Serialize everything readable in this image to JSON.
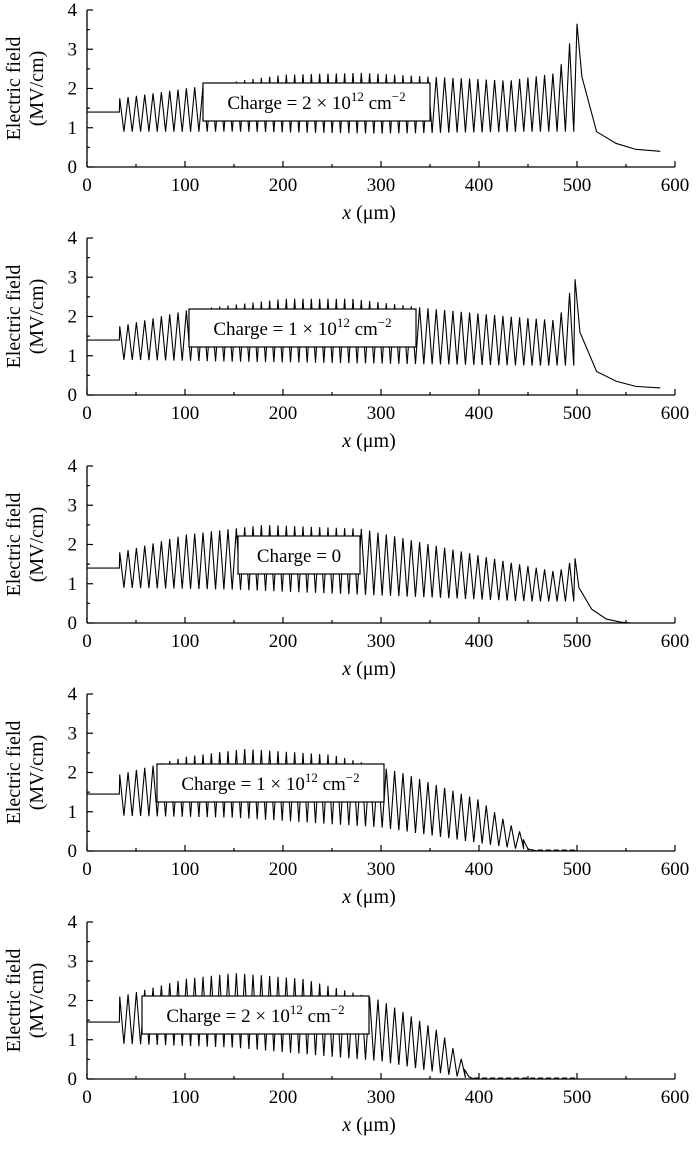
{
  "chart_data": [
    {
      "type": "line",
      "annotation": {
        "prefix": "Charge = 2 × 10",
        "exp": "12",
        "unit": " cm",
        "unit_exp": "−2"
      },
      "ylabel_line1": "Electric field",
      "ylabel_line2": "(MV/cm)",
      "xlabel_var": "x",
      "xlabel_unit": " (μm)",
      "xlim": [
        0,
        600
      ],
      "ylim": [
        0,
        4
      ],
      "xticks": [
        "0",
        "100",
        "200",
        "300",
        "400",
        "500",
        "600"
      ],
      "yticks": [
        "0",
        "1",
        "2",
        "3",
        "4"
      ],
      "series": [
        {
          "baseline": 1.4,
          "spike_start": 33,
          "spike_end": 500,
          "spike_pitch": 8.5,
          "peak_envelope": [
            [
              33,
              1.75
            ],
            [
              100,
              2.0
            ],
            [
              200,
              2.35
            ],
            [
              280,
              2.4
            ],
            [
              350,
              2.3
            ],
            [
              430,
              2.2
            ],
            [
              480,
              2.4
            ],
            [
              500,
              3.65
            ]
          ],
          "trough_envelope": [
            [
              33,
              0.9
            ],
            [
              150,
              0.9
            ],
            [
              300,
              0.85
            ],
            [
              450,
              0.9
            ],
            [
              500,
              0.9
            ]
          ],
          "tail": [
            [
              500,
              3.65
            ],
            [
              505,
              2.3
            ],
            [
              520,
              0.9
            ],
            [
              540,
              0.6
            ],
            [
              560,
              0.45
            ],
            [
              585,
              0.4
            ]
          ],
          "dashed_tail": false
        }
      ]
    },
    {
      "type": "line",
      "annotation": {
        "prefix": "Charge = 1 × 10",
        "exp": "12",
        "unit": " cm",
        "unit_exp": "−2"
      },
      "ylabel_line1": "Electric field",
      "ylabel_line2": "(MV/cm)",
      "xlabel_var": "x",
      "xlabel_unit": " (μm)",
      "xlim": [
        0,
        600
      ],
      "ylim": [
        0,
        4
      ],
      "xticks": [
        "0",
        "100",
        "200",
        "300",
        "400",
        "500",
        "600"
      ],
      "yticks": [
        "0",
        "1",
        "2",
        "3",
        "4"
      ],
      "series": [
        {
          "baseline": 1.4,
          "spike_start": 33,
          "spike_end": 498,
          "spike_pitch": 8.5,
          "peak_envelope": [
            [
              33,
              1.75
            ],
            [
              100,
              2.15
            ],
            [
              200,
              2.45
            ],
            [
              270,
              2.45
            ],
            [
              350,
              2.2
            ],
            [
              430,
              2.0
            ],
            [
              480,
              1.9
            ],
            [
              498,
              2.95
            ]
          ],
          "trough_envelope": [
            [
              33,
              0.9
            ],
            [
              150,
              0.85
            ],
            [
              300,
              0.8
            ],
            [
              450,
              0.75
            ],
            [
              498,
              0.75
            ]
          ],
          "tail": [
            [
              498,
              2.95
            ],
            [
              503,
              1.6
            ],
            [
              520,
              0.6
            ],
            [
              540,
              0.35
            ],
            [
              560,
              0.22
            ],
            [
              585,
              0.18
            ]
          ],
          "dashed_tail": false
        }
      ]
    },
    {
      "type": "line",
      "annotation": {
        "prefix": "Charge = 0",
        "exp": "",
        "unit": "",
        "unit_exp": ""
      },
      "ylabel_line1": "Electric field",
      "ylabel_line2": "(MV/cm)",
      "xlabel_var": "x",
      "xlabel_unit": " (μm)",
      "xlim": [
        0,
        600
      ],
      "ylim": [
        0,
        4
      ],
      "xticks": [
        "0",
        "100",
        "200",
        "300",
        "400",
        "500",
        "600"
      ],
      "yticks": [
        "0",
        "1",
        "2",
        "3",
        "4"
      ],
      "series": [
        {
          "baseline": 1.4,
          "spike_start": 33,
          "spike_end": 498,
          "spike_pitch": 8.5,
          "peak_envelope": [
            [
              33,
              1.8
            ],
            [
              100,
              2.25
            ],
            [
              180,
              2.5
            ],
            [
              280,
              2.4
            ],
            [
              350,
              2.0
            ],
            [
              430,
              1.55
            ],
            [
              480,
              1.3
            ],
            [
              498,
              1.65
            ]
          ],
          "trough_envelope": [
            [
              33,
              0.9
            ],
            [
              150,
              0.85
            ],
            [
              300,
              0.7
            ],
            [
              450,
              0.55
            ],
            [
              498,
              0.55
            ]
          ],
          "tail": [
            [
              498,
              1.65
            ],
            [
              502,
              0.9
            ],
            [
              515,
              0.35
            ],
            [
              530,
              0.1
            ],
            [
              545,
              0.02
            ],
            [
              555,
              0.0
            ]
          ],
          "dashed_tail": false
        }
      ]
    },
    {
      "type": "line",
      "annotation": {
        "prefix": "Charge = 1 × 10",
        "exp": "12",
        "unit": " cm",
        "unit_exp": "−2"
      },
      "ylabel_line1": "Electric field",
      "ylabel_line2": "(MV/cm)",
      "xlabel_var": "x",
      "xlabel_unit": " (μm)",
      "xlim": [
        0,
        600
      ],
      "ylim": [
        0,
        4
      ],
      "xticks": [
        "0",
        "100",
        "200",
        "300",
        "400",
        "500",
        "600"
      ],
      "yticks": [
        "0",
        "1",
        "2",
        "3",
        "4"
      ],
      "series": [
        {
          "baseline": 1.45,
          "spike_start": 33,
          "spike_end": 445,
          "spike_pitch": 8.5,
          "peak_envelope": [
            [
              33,
              1.95
            ],
            [
              100,
              2.4
            ],
            [
              160,
              2.6
            ],
            [
              250,
              2.45
            ],
            [
              320,
              2.0
            ],
            [
              400,
              1.3
            ],
            [
              440,
              0.5
            ]
          ],
          "trough_envelope": [
            [
              33,
              0.9
            ],
            [
              150,
              0.85
            ],
            [
              300,
              0.6
            ],
            [
              400,
              0.2
            ],
            [
              440,
              0.05
            ]
          ],
          "tail": [
            [
              445,
              0.3
            ],
            [
              450,
              0.05
            ],
            [
              460,
              0.0
            ]
          ],
          "dashed_tail": true,
          "dash_end": 500
        }
      ]
    },
    {
      "type": "line",
      "annotation": {
        "prefix": "Charge = 2 × 10",
        "exp": "12",
        "unit": " cm",
        "unit_exp": "−2"
      },
      "ylabel_line1": "Electric field",
      "ylabel_line2": "(MV/cm)",
      "xlabel_var": "x",
      "xlabel_unit": " (μm)",
      "xlim": [
        0,
        600
      ],
      "ylim": [
        0,
        4
      ],
      "xticks": [
        "0",
        "100",
        "200",
        "300",
        "400",
        "500",
        "600"
      ],
      "yticks": [
        "0",
        "1",
        "2",
        "3",
        "4"
      ],
      "series": [
        {
          "baseline": 1.45,
          "spike_start": 33,
          "spike_end": 385,
          "spike_pitch": 8.5,
          "peak_envelope": [
            [
              33,
              2.1
            ],
            [
              100,
              2.55
            ],
            [
              150,
              2.7
            ],
            [
              220,
              2.55
            ],
            [
              300,
              2.0
            ],
            [
              360,
              1.2
            ],
            [
              385,
              0.4
            ]
          ],
          "trough_envelope": [
            [
              33,
              0.9
            ],
            [
              150,
              0.8
            ],
            [
              300,
              0.45
            ],
            [
              370,
              0.1
            ],
            [
              385,
              0.03
            ]
          ],
          "tail": [
            [
              385,
              0.25
            ],
            [
              390,
              0.05
            ],
            [
              395,
              0.0
            ]
          ],
          "dashed_tail": true,
          "dash_end": 500
        }
      ]
    }
  ]
}
